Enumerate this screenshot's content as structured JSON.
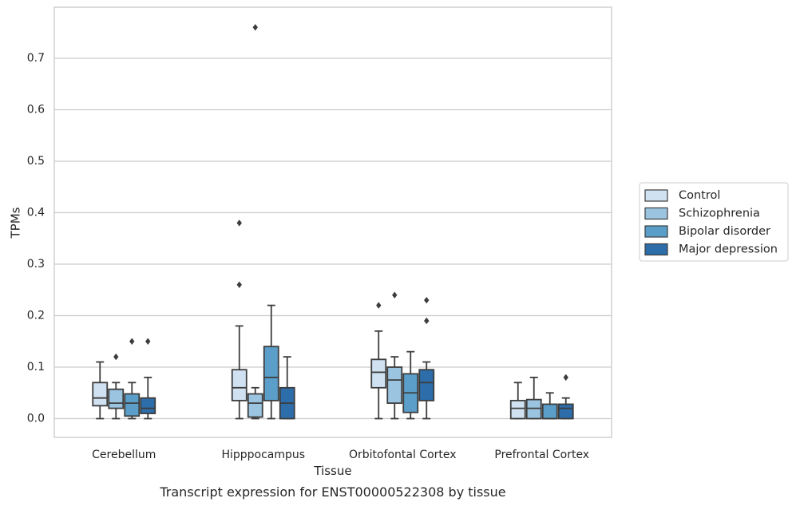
{
  "chart_data": {
    "type": "boxplot",
    "title": "",
    "caption": "Transcript expression for ENST00000522308 by tissue",
    "xlabel": "Tissue",
    "ylabel": "TPMs",
    "ylim": [
      -0.037,
      0.8
    ],
    "yticks": [
      "0.0",
      "0.1",
      "0.2",
      "0.3",
      "0.4",
      "0.5",
      "0.6",
      "0.7"
    ],
    "ytick_values": [
      0,
      0.1,
      0.2,
      0.3,
      0.4,
      0.5,
      0.6,
      0.7
    ],
    "grid": "horizontal",
    "legend_position": "right",
    "categories": [
      "Cerebellum",
      "Hipppocampus",
      "Orbitofontal Cortex",
      "Prefrontal Cortex"
    ],
    "series": [
      {
        "name": "Control",
        "color": "#d0e2f2",
        "boxes": [
          {
            "whislo": 0.0,
            "q1": 0.025,
            "med": 0.04,
            "q3": 0.07,
            "whishi": 0.11,
            "fliers": []
          },
          {
            "whislo": 0.0,
            "q1": 0.035,
            "med": 0.06,
            "q3": 0.095,
            "whishi": 0.18,
            "fliers": [
              0.26,
              0.38
            ]
          },
          {
            "whislo": 0.0,
            "q1": 0.06,
            "med": 0.09,
            "q3": 0.115,
            "whishi": 0.17,
            "fliers": [
              0.22
            ]
          },
          {
            "whislo": 0.0,
            "q1": 0.0,
            "med": 0.02,
            "q3": 0.035,
            "whishi": 0.07,
            "fliers": []
          }
        ]
      },
      {
        "name": "Schizophrenia",
        "color": "#9ac4e0",
        "boxes": [
          {
            "whislo": 0.0,
            "q1": 0.02,
            "med": 0.03,
            "q3": 0.057,
            "whishi": 0.07,
            "fliers": [
              0.12
            ]
          },
          {
            "whislo": 0.0,
            "q1": 0.003,
            "med": 0.03,
            "q3": 0.048,
            "whishi": 0.06,
            "fliers": [
              0.76
            ]
          },
          {
            "whislo": 0.0,
            "q1": 0.03,
            "med": 0.075,
            "q3": 0.1,
            "whishi": 0.12,
            "fliers": [
              0.24
            ]
          },
          {
            "whislo": 0.0,
            "q1": 0.0,
            "med": 0.02,
            "q3": 0.037,
            "whishi": 0.08,
            "fliers": []
          }
        ]
      },
      {
        "name": "Bipolar disorder",
        "color": "#5a9ec9",
        "boxes": [
          {
            "whislo": 0.0,
            "q1": 0.005,
            "med": 0.03,
            "q3": 0.048,
            "whishi": 0.07,
            "fliers": [
              0.15
            ]
          },
          {
            "whislo": 0.0,
            "q1": 0.035,
            "med": 0.08,
            "q3": 0.14,
            "whishi": 0.22,
            "fliers": []
          },
          {
            "whislo": 0.0,
            "q1": 0.012,
            "med": 0.05,
            "q3": 0.087,
            "whishi": 0.13,
            "fliers": []
          },
          {
            "whislo": 0.0,
            "q1": 0.0,
            "med": 0.0,
            "q3": 0.028,
            "whishi": 0.05,
            "fliers": []
          }
        ]
      },
      {
        "name": "Major depression",
        "color": "#2c6daa",
        "boxes": [
          {
            "whislo": 0.0,
            "q1": 0.01,
            "med": 0.02,
            "q3": 0.04,
            "whishi": 0.08,
            "fliers": [
              0.15
            ]
          },
          {
            "whislo": 0.0,
            "q1": 0.0,
            "med": 0.03,
            "q3": 0.06,
            "whishi": 0.12,
            "fliers": []
          },
          {
            "whislo": 0.0,
            "q1": 0.035,
            "med": 0.07,
            "q3": 0.095,
            "whishi": 0.11,
            "fliers": [
              0.19,
              0.23
            ]
          },
          {
            "whislo": 0.0,
            "q1": 0.0,
            "med": 0.02,
            "q3": 0.028,
            "whishi": 0.04,
            "fliers": [
              0.08
            ]
          }
        ]
      }
    ]
  }
}
